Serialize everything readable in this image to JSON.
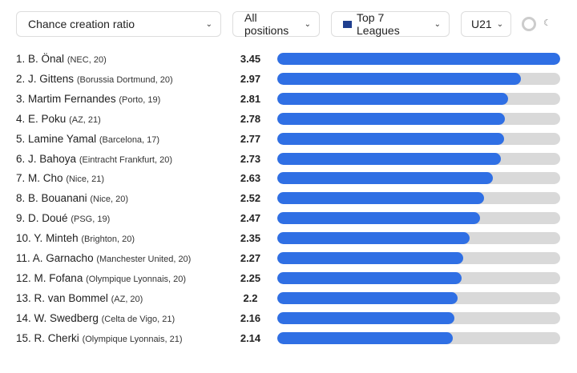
{
  "filters": {
    "metric": "Chance creation ratio",
    "position": "All positions",
    "league": "Top 7 Leagues",
    "age": "U21"
  },
  "colors": {
    "bar": "#2f6fe4",
    "track": "#d9d9d9"
  },
  "max_value": 3.45,
  "players": [
    {
      "rank": "1.",
      "name": "B. Önal",
      "club": "(NEC, 20)",
      "value": "3.45"
    },
    {
      "rank": "2.",
      "name": "J. Gittens",
      "club": "(Borussia Dortmund, 20)",
      "value": "2.97"
    },
    {
      "rank": "3.",
      "name": "Martim Fernandes",
      "club": "(Porto, 19)",
      "value": "2.81"
    },
    {
      "rank": "4.",
      "name": "E. Poku",
      "club": "(AZ, 21)",
      "value": "2.78"
    },
    {
      "rank": "5.",
      "name": "Lamine Yamal",
      "club": "(Barcelona, 17)",
      "value": "2.77"
    },
    {
      "rank": "6.",
      "name": "J. Bahoya",
      "club": "(Eintracht Frankfurt, 20)",
      "value": "2.73"
    },
    {
      "rank": "7.",
      "name": "M. Cho",
      "club": "(Nice, 21)",
      "value": "2.63"
    },
    {
      "rank": "8.",
      "name": "B. Bouanani",
      "club": "(Nice, 20)",
      "value": "2.52"
    },
    {
      "rank": "9.",
      "name": "D. Doué",
      "club": "(PSG, 19)",
      "value": "2.47"
    },
    {
      "rank": "10.",
      "name": "Y. Minteh",
      "club": "(Brighton, 20)",
      "value": "2.35"
    },
    {
      "rank": "11.",
      "name": "A. Garnacho",
      "club": "(Manchester United, 20)",
      "value": "2.27"
    },
    {
      "rank": "12.",
      "name": "M. Fofana",
      "club": "(Olympique Lyonnais, 20)",
      "value": "2.25"
    },
    {
      "rank": "13.",
      "name": "R. van Bommel",
      "club": "(AZ, 20)",
      "value": "2.2"
    },
    {
      "rank": "14.",
      "name": "W. Swedberg",
      "club": "(Celta de Vigo, 21)",
      "value": "2.16"
    },
    {
      "rank": "15.",
      "name": "R. Cherki",
      "club": "(Olympique Lyonnais, 21)",
      "value": "2.14"
    }
  ]
}
